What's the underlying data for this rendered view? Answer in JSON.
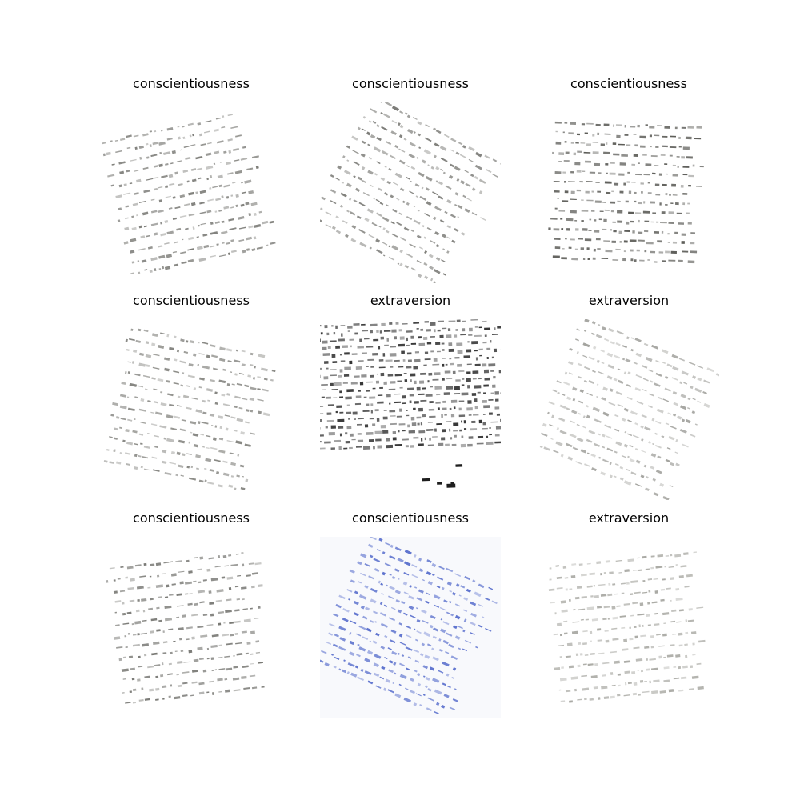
{
  "panels": [
    {
      "label": "conscientiousness",
      "ink": "#6f6f6a",
      "image": "handwriting-sample-rotated"
    },
    {
      "label": "conscientiousness",
      "ink": "#6f6f6a",
      "image": "handwriting-sample-rotated"
    },
    {
      "label": "conscientiousness",
      "ink": "#4a4a45",
      "image": "handwriting-sample"
    },
    {
      "label": "conscientiousness",
      "ink": "#7a7a75",
      "image": "handwriting-sample-rotated"
    },
    {
      "label": "extraversion",
      "ink": "#1e1e1e",
      "image": "handwriting-sample-dense"
    },
    {
      "label": "extraversion",
      "ink": "#9a9a95",
      "image": "handwriting-sample-rotated"
    },
    {
      "label": "conscientiousness",
      "ink": "#6a6a65",
      "image": "handwriting-sample-rotated"
    },
    {
      "label": "conscientiousness",
      "ink": "#4a62c8",
      "image": "handwriting-sample-blue"
    },
    {
      "label": "extraversion",
      "ink": "#a0a09a",
      "image": "handwriting-sample-rotated"
    }
  ]
}
